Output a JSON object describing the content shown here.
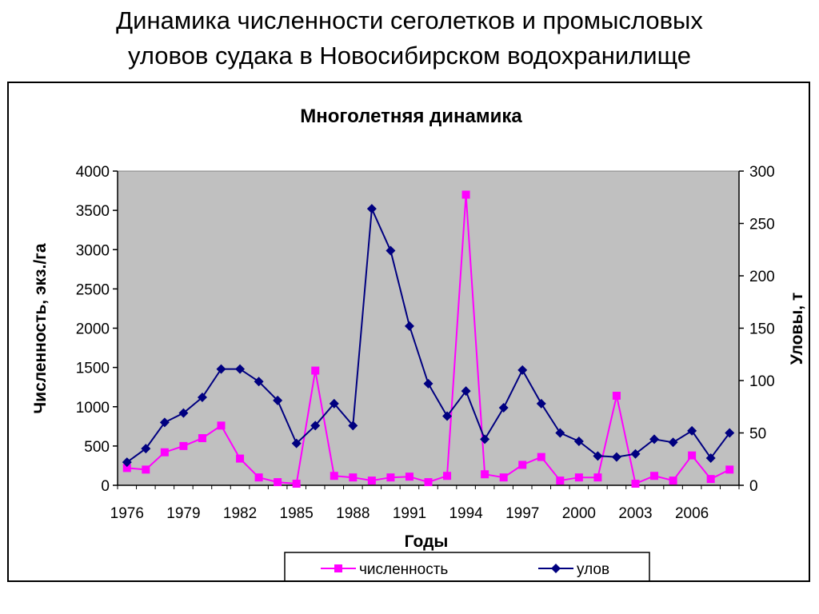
{
  "slide": {
    "title_line1": "Динамика численности сеголетков и промысловых",
    "title_line2": "уловов судака в Новосибирском водохранилище"
  },
  "colors": {
    "plot_background": "#c0c0c0",
    "abundance_series": "#ff00ff",
    "catch_series": "#000080"
  },
  "chart_data": {
    "type": "line",
    "title": "Многолетняя динамика",
    "xlabel": "Годы",
    "ylabel_left": "Численность, экз./га",
    "ylabel_right": "Уловы, т",
    "x": [
      1976,
      1977,
      1978,
      1979,
      1980,
      1981,
      1982,
      1983,
      1984,
      1985,
      1986,
      1987,
      1988,
      1989,
      1990,
      1991,
      1992,
      1993,
      1994,
      1995,
      1996,
      1997,
      1998,
      1999,
      2000,
      2001,
      2002,
      2003,
      2004,
      2005,
      2006,
      2007,
      2008
    ],
    "x_tick_labels": [
      "1976",
      "1979",
      "1982",
      "1985",
      "1988",
      "1991",
      "1994",
      "1997",
      "2000",
      "2003",
      "2006"
    ],
    "ylim_left": [
      0,
      4000
    ],
    "y_ticks_left": [
      "0",
      "500",
      "1000",
      "1500",
      "2000",
      "2500",
      "3000",
      "3500",
      "4000"
    ],
    "ylim_right": [
      0,
      300
    ],
    "y_ticks_right": [
      "0",
      "50",
      "100",
      "150",
      "200",
      "250",
      "300"
    ],
    "grid": false,
    "legend_position": "bottom-center",
    "series": [
      {
        "name": "численность",
        "axis": "left",
        "marker": "square",
        "values": [
          220,
          200,
          420,
          500,
          600,
          760,
          340,
          100,
          40,
          20,
          1460,
          120,
          100,
          60,
          100,
          110,
          40,
          120,
          3700,
          140,
          100,
          260,
          360,
          60,
          100,
          100,
          1140,
          20,
          120,
          60,
          380,
          80,
          200
        ]
      },
      {
        "name": "улов",
        "axis": "right",
        "marker": "diamond",
        "values": [
          22,
          35,
          60,
          69,
          84,
          111,
          111,
          99,
          81,
          40,
          57,
          78,
          57,
          264,
          224,
          152,
          97,
          66,
          90,
          44,
          74,
          110,
          78,
          50,
          42,
          28,
          27,
          30,
          44,
          41,
          52,
          26,
          50
        ]
      }
    ]
  }
}
